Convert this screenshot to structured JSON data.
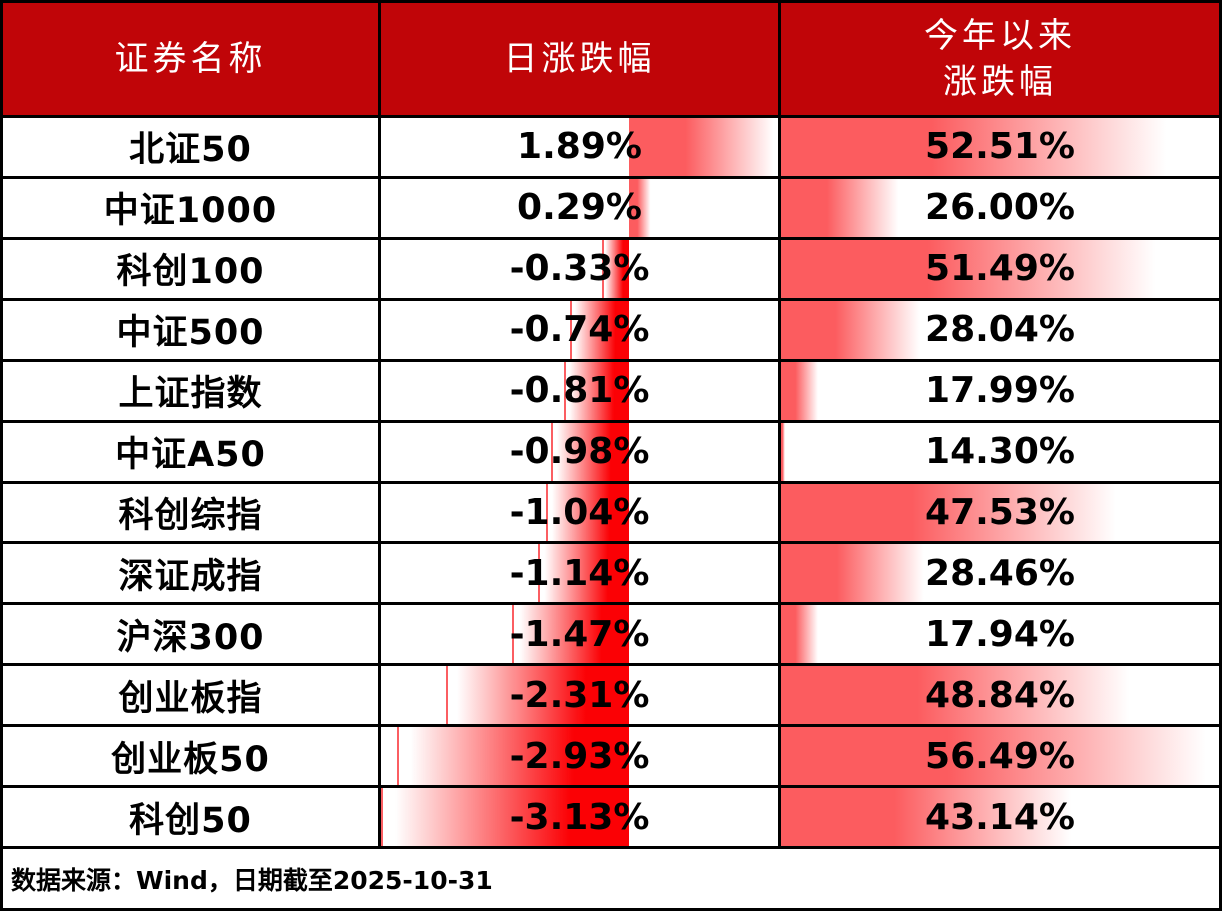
{
  "table": {
    "header": {
      "col_name": "证券名称",
      "col_daily": "日涨跌幅",
      "col_ytd_line1": "今年以来",
      "col_ytd_line2": "涨跌幅"
    },
    "rows": [
      {
        "name": "北证50",
        "daily": "1.89%",
        "ytd": "52.51%",
        "daily_value": 1.89,
        "ytd_value": 52.51
      },
      {
        "name": "中证1000",
        "daily": "0.29%",
        "ytd": "26.00%",
        "daily_value": 0.29,
        "ytd_value": 26.0
      },
      {
        "name": "科创100",
        "daily": "-0.33%",
        "ytd": "51.49%",
        "daily_value": -0.33,
        "ytd_value": 51.49
      },
      {
        "name": "中证500",
        "daily": "-0.74%",
        "ytd": "28.04%",
        "daily_value": -0.74,
        "ytd_value": 28.04
      },
      {
        "name": "上证指数",
        "daily": "-0.81%",
        "ytd": "17.99%",
        "daily_value": -0.81,
        "ytd_value": 17.99
      },
      {
        "name": "中证A50",
        "daily": "-0.98%",
        "ytd": "14.30%",
        "daily_value": -0.98,
        "ytd_value": 14.3
      },
      {
        "name": "科创综指",
        "daily": "-1.04%",
        "ytd": "47.53%",
        "daily_value": -1.04,
        "ytd_value": 47.53
      },
      {
        "name": "深证成指",
        "daily": "-1.14%",
        "ytd": "28.46%",
        "daily_value": -1.14,
        "ytd_value": 28.46
      },
      {
        "name": "沪深300",
        "daily": "-1.47%",
        "ytd": "17.94%",
        "daily_value": -1.47,
        "ytd_value": 17.94
      },
      {
        "name": "创业板指",
        "daily": "-2.31%",
        "ytd": "48.84%",
        "daily_value": -2.31,
        "ytd_value": 48.84
      },
      {
        "name": "创业板50",
        "daily": "-2.93%",
        "ytd": "56.49%",
        "daily_value": -2.93,
        "ytd_value": 56.49
      },
      {
        "name": "科创50",
        "daily": "-3.13%",
        "ytd": "43.14%",
        "daily_value": -3.13,
        "ytd_value": 43.14
      }
    ],
    "footer": "数据来源：Wind，日期截至2025-10-31"
  },
  "bars": {
    "daily_scale": {
      "min": -3.13,
      "max": 1.89
    },
    "ytd_scale": {
      "min": 14.3,
      "max": 56.49
    },
    "min_bar_percent": 1,
    "positive_color": "#fc5c5f",
    "negative_color": "#fb0105"
  },
  "colors": {
    "header_bg": "#c00508",
    "header_text": "#ffffff",
    "body_text": "#000000",
    "border": "#000000"
  },
  "chart_data": {
    "type": "table",
    "columns": [
      "证券名称",
      "日涨跌幅",
      "今年以来涨跌幅"
    ],
    "rows": [
      [
        "北证50",
        1.89,
        52.51
      ],
      [
        "中证1000",
        0.29,
        26.0
      ],
      [
        "科创100",
        -0.33,
        51.49
      ],
      [
        "中证500",
        -0.74,
        28.04
      ],
      [
        "上证指数",
        -0.81,
        17.99
      ],
      [
        "中证A50",
        -0.98,
        14.3
      ],
      [
        "科创综指",
        -1.04,
        47.53
      ],
      [
        "深证成指",
        -1.14,
        28.46
      ],
      [
        "沪深300",
        -1.47,
        17.94
      ],
      [
        "创业板指",
        -2.31,
        48.84
      ],
      [
        "创业板50",
        -2.93,
        56.49
      ],
      [
        "科创50",
        -3.13,
        43.14
      ]
    ],
    "units": "percent",
    "data_bars": {
      "daily": {
        "scale_min": -3.13,
        "scale_max": 1.89,
        "axis_position_fraction": 0.6235,
        "positive_color": "#fc5c5f",
        "negative_color": "#fb0105",
        "gradient": "fades to white toward bar tip"
      },
      "ytd": {
        "scale_min": 14.3,
        "scale_max": 56.49,
        "color": "#fc5c5f",
        "gradient": "fades to white toward bar tip",
        "direction": "left-to-right"
      }
    },
    "source_note": "数据来源：Wind，日期截至2025-10-31"
  }
}
